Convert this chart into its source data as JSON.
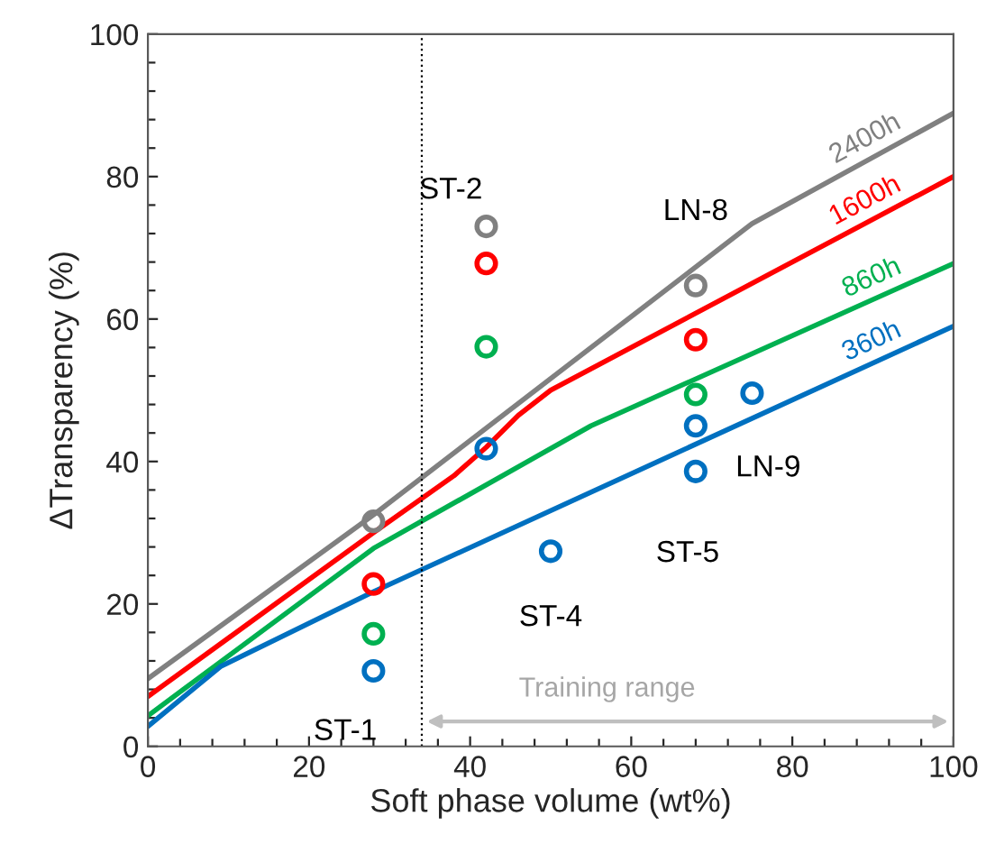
{
  "chart_data": {
    "type": "line",
    "xlabel": "Soft phase volume (wt%)",
    "ylabel": "ΔTransparency (%)",
    "xlim": [
      0,
      100
    ],
    "ylim": [
      0,
      100
    ],
    "xticks": [
      0,
      {
        "value": 4,
        "label": null
      },
      {
        "value": 8,
        "label": null
      },
      {
        "value": 12,
        "label": null
      },
      {
        "value": 16,
        "label": null
      },
      20,
      {
        "value": 24,
        "label": null
      },
      {
        "value": 28,
        "label": null
      },
      {
        "value": 32,
        "label": null
      },
      {
        "value": 36,
        "label": null
      },
      40,
      {
        "value": 44,
        "label": null
      },
      {
        "value": 48,
        "label": null
      },
      {
        "value": 52,
        "label": null
      },
      {
        "value": 56,
        "label": null
      },
      60,
      {
        "value": 64,
        "label": null
      },
      {
        "value": 68,
        "label": null
      },
      {
        "value": 72,
        "label": null
      },
      {
        "value": 76,
        "label": null
      },
      80,
      {
        "value": 84,
        "label": null
      },
      {
        "value": 88,
        "label": null
      },
      {
        "value": 92,
        "label": null
      },
      {
        "value": 96,
        "label": null
      },
      100
    ],
    "yticks": [
      0,
      {
        "value": 4,
        "label": null
      },
      {
        "value": 8,
        "label": null
      },
      {
        "value": 12,
        "label": null
      },
      {
        "value": 16,
        "label": null
      },
      20,
      {
        "value": 24,
        "label": null
      },
      {
        "value": 28,
        "label": null
      },
      {
        "value": 32,
        "label": null
      },
      {
        "value": 36,
        "label": null
      },
      40,
      {
        "value": 44,
        "label": null
      },
      {
        "value": 48,
        "label": null
      },
      {
        "value": 52,
        "label": null
      },
      {
        "value": 56,
        "label": null
      },
      60,
      {
        "value": 64,
        "label": null
      },
      {
        "value": 68,
        "label": null
      },
      {
        "value": 72,
        "label": null
      },
      {
        "value": 76,
        "label": null
      },
      80,
      {
        "value": 84,
        "label": null
      },
      {
        "value": 88,
        "label": null
      },
      {
        "value": 92,
        "label": null
      },
      {
        "value": 96,
        "label": null
      },
      100
    ],
    "grid": false,
    "legend": false,
    "line_style": "solid",
    "marker": "none",
    "series": [
      {
        "name": "2400h",
        "color": "#808080",
        "x": [
          0,
          28,
          75,
          100
        ],
        "values": [
          9.5,
          32.5,
          73.4,
          88.9
        ]
      },
      {
        "name": "1600h",
        "color": "#ff0000",
        "x": [
          0,
          28,
          38,
          42,
          46,
          50,
          100
        ],
        "values": [
          7,
          30,
          38,
          42,
          46.5,
          50,
          80
        ]
      },
      {
        "name": "860h",
        "color": "#00b050",
        "x": [
          0,
          28,
          55,
          100
        ],
        "values": [
          4.3,
          27.8,
          45,
          67.8
        ]
      },
      {
        "name": "360h",
        "color": "#0070c0",
        "x": [
          0,
          9,
          28,
          100
        ],
        "values": [
          2.8,
          11.2,
          21.7,
          59
        ]
      },
      {
        "type": "scatter",
        "marker": "circle",
        "color": "#808080",
        "x": [
          28,
          42,
          68
        ],
        "values": [
          31.6,
          73,
          64.7
        ]
      },
      {
        "type": "scatter",
        "marker": "circle",
        "color": "#ff0000",
        "x": [
          28,
          42,
          68
        ],
        "values": [
          22.8,
          67.8,
          57.1
        ]
      },
      {
        "type": "scatter",
        "marker": "circle",
        "color": "#00b050",
        "x": [
          28,
          42,
          68
        ],
        "values": [
          15.8,
          56.1,
          49.4
        ]
      },
      {
        "type": "scatter",
        "marker": "circle",
        "color": "#0070c0",
        "x": [
          28,
          42,
          50,
          68,
          68,
          75
        ],
        "values": [
          10.6,
          41.8,
          27.4,
          45,
          38.6,
          49.6
        ]
      }
    ],
    "ref_lines": [
      {
        "axis": "x",
        "value": 34,
        "color": "#000000",
        "line_style": "dotted"
      }
    ],
    "annotations": [
      "ST-1",
      "ST-2",
      "ST-4",
      "ST-5",
      "LN-8",
      "LN-9",
      "Training range"
    ]
  }
}
